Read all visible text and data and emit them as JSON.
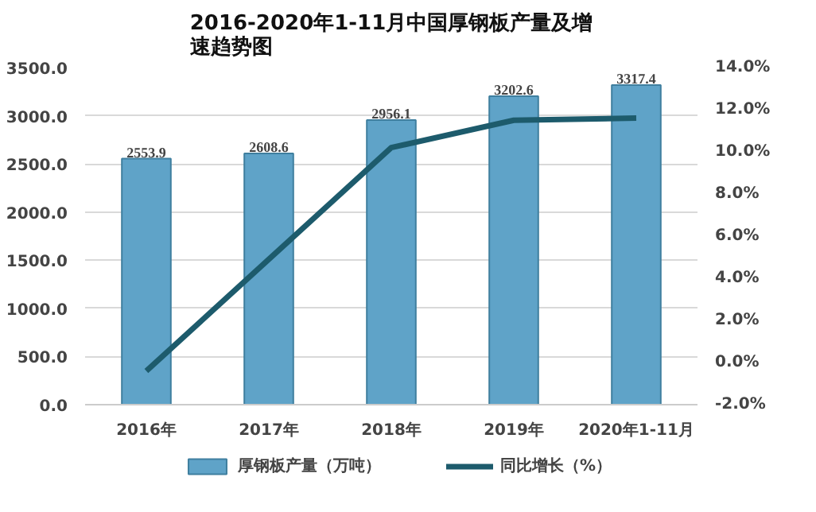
{
  "chart_data": {
    "type": "bar",
    "title": "2016-2020年1-11月中国厚钢板产量及增速趋势图",
    "categories": [
      "2016年",
      "2017年",
      "2018年",
      "2019年",
      "2020年1-11月"
    ],
    "series": [
      {
        "name": "厚钢板产量（万吨）",
        "color": "#5fa3c8",
        "values": [
          2553.9,
          2608.6,
          2956.1,
          3202.6,
          3317.4
        ],
        "data_labels": true
      },
      {
        "name": "同比增长（%）",
        "type": "line",
        "axis": "y2",
        "color": "#1d5b6c",
        "values": [
          -0.4,
          4.9,
          10.2,
          11.5,
          11.6
        ]
      }
    ],
    "ylim": [
      0,
      3500
    ],
    "yticks": [
      {
        "value": 0,
        "label": "0.0"
      },
      {
        "value": 500,
        "label": "500.0"
      },
      {
        "value": 1000,
        "label": "1000.0"
      },
      {
        "value": 1500,
        "label": "1500.0"
      },
      {
        "value": 2000,
        "label": "2000.0"
      },
      {
        "value": 2500,
        "label": "2500.0"
      },
      {
        "value": 3000,
        "label": "3000.0"
      },
      {
        "value": 3500,
        "label": "3500.0"
      }
    ],
    "y2lim": [
      -2,
      14
    ],
    "y2ticks": [
      {
        "value": -2,
        "label": "-2.0%"
      },
      {
        "value": 0,
        "label": "0.0%"
      },
      {
        "value": 2,
        "label": "2.0%"
      },
      {
        "value": 4,
        "label": "4.0%"
      },
      {
        "value": 6,
        "label": "6.0%"
      },
      {
        "value": 8,
        "label": "8.0%"
      },
      {
        "value": 10,
        "label": "10.0%"
      },
      {
        "value": 12,
        "label": "12.0%"
      },
      {
        "value": 14,
        "label": "14.0%"
      }
    ],
    "grid": "y",
    "legend": "bottom",
    "marker": "none"
  }
}
